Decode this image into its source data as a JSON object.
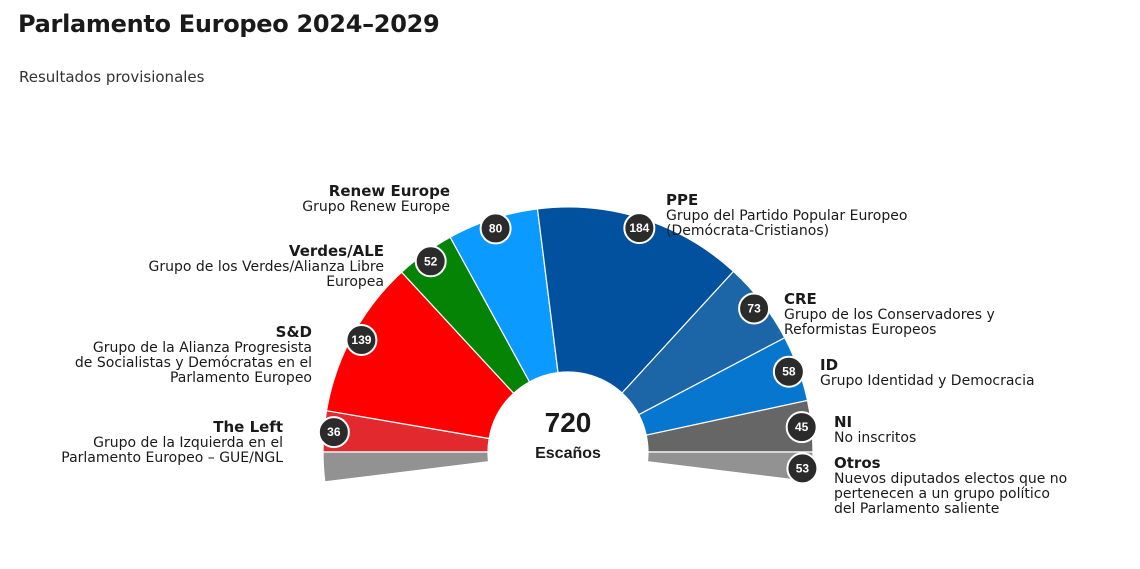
{
  "title": "Parlamento Europeo 2024–2029",
  "subtitle": "Resultados provisionales",
  "chart_data": {
    "type": "pie",
    "variant": "parliament-half-donut",
    "title": "Parlamento Europeo 2024–2029",
    "subtitle": "Resultados provisionales",
    "total": {
      "value": "720",
      "label": "Escaños"
    },
    "series": [
      {
        "key": "left",
        "abbr": "The Left",
        "name": "Grupo de la Izquierda en el\nParlamento Europeo – GUE/NGL",
        "value": 36,
        "color": "#e22a2e"
      },
      {
        "key": "sd",
        "abbr": "S&D",
        "name": "Grupo de la Alianza Progresista\nde Socialistas y Demócratas en el\nParlamento Europeo",
        "value": 139,
        "color": "#fe0000"
      },
      {
        "key": "greens",
        "abbr": "Verdes/ALE",
        "name": "Grupo de los Verdes/Alianza Libre\nEuropea",
        "value": 52,
        "color": "#058304"
      },
      {
        "key": "renew",
        "abbr": "Renew Europe",
        "name": "Grupo Renew Europe",
        "value": 80,
        "color": "#0b9aff"
      },
      {
        "key": "ppe",
        "abbr": "PPE",
        "name": "Grupo del Partido Popular Europeo\n(Demócrata-Cristianos)",
        "value": 184,
        "color": "#02519f"
      },
      {
        "key": "cre",
        "abbr": "CRE",
        "name": "Grupo de los Conservadores y\nReformistas Europeos",
        "value": 73,
        "color": "#1c65a6"
      },
      {
        "key": "id",
        "abbr": "ID",
        "name": "Grupo Identidad y Democracia",
        "value": 58,
        "color": "#0776cf"
      },
      {
        "key": "ni",
        "abbr": "NI",
        "name": "No inscritos",
        "value": 45,
        "color": "#666666"
      }
    ],
    "others": {
      "key": "otros",
      "abbr": "Otros",
      "name": "Nuevos diputados electos que no\npertenecen a un grupo político\ndel Parlamento saliente",
      "value": 53,
      "color": "#929292"
    }
  }
}
